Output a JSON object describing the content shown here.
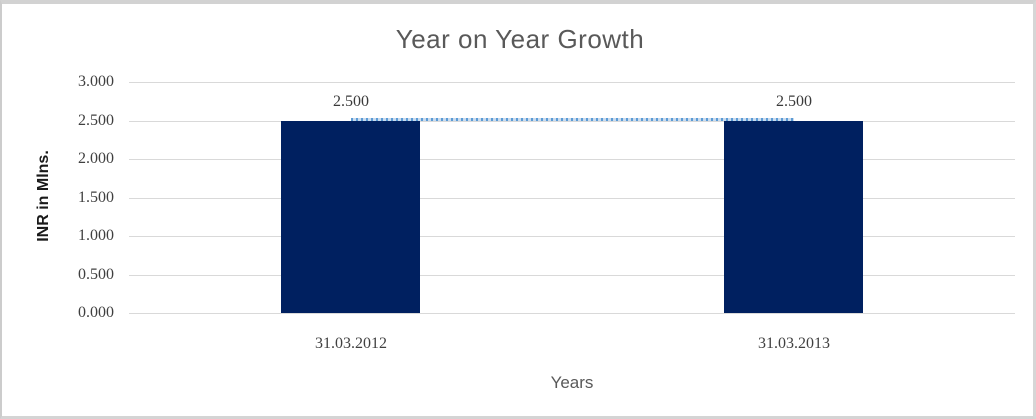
{
  "frame": {
    "background": "#ffffff",
    "border_color": "#d4d4d4"
  },
  "chart_data": {
    "type": "bar",
    "title": "Year on Year Growth",
    "xlabel": "Years",
    "ylabel": "INR in Mlns.",
    "categories": [
      "31.03.2012",
      "31.03.2013"
    ],
    "series": [
      {
        "name": "INR in Mlns.",
        "values": [
          2.5,
          2.5
        ],
        "data_labels": [
          "2.500",
          "2.500"
        ],
        "color": "#002060"
      }
    ],
    "ylim": [
      0,
      3
    ],
    "ytick_step": 0.5,
    "ytick_labels": [
      "0.000",
      "0.500",
      "1.000",
      "1.500",
      "2.000",
      "2.500",
      "3.000"
    ],
    "grid": true,
    "gridline_color": "#d9d9d9",
    "trendline": {
      "style": "dotted",
      "connects": "bar-tops",
      "y_value": 2.5,
      "dot_color": "#5b9bd5",
      "gap_color": "#c9dbee"
    },
    "title_color": "#595959",
    "tick_label_color": "#3f3f3f",
    "legend": "none"
  }
}
